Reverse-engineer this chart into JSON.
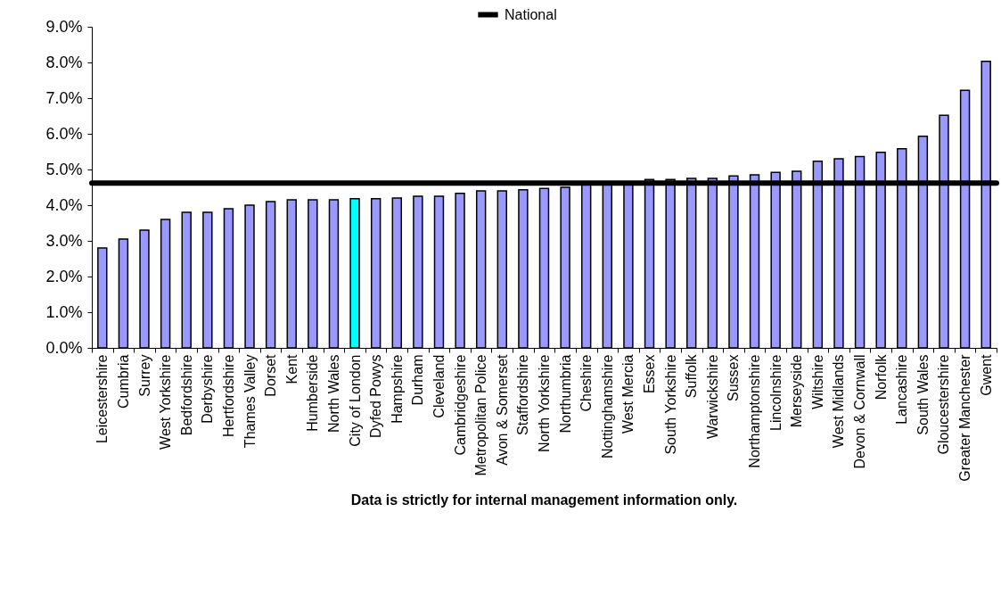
{
  "chart_data": {
    "type": "bar",
    "categories": [
      "Leicestershire",
      "Cumbria",
      "Surrey",
      "West Yorkshire",
      "Bedfordshire",
      "Derbyshire",
      "Hertfordshire",
      "Thames Valley",
      "Dorset",
      "Kent",
      "Humberside",
      "North Wales",
      "City of London",
      "Dyfed Powys",
      "Hampshire",
      "Durham",
      "Cleveland",
      "Cambridgeshire",
      "Metropolitan Police",
      "Avon & Somerset",
      "Staffordshire",
      "North Yorkshire",
      "Northumbria",
      "Cheshire",
      "Nottinghamshire",
      "West Mercia",
      "Essex",
      "South Yorkshire",
      "Suffolk",
      "Warwickshire",
      "Sussex",
      "Northamptonshire",
      "Lincolnshire",
      "Merseyside",
      "Wiltshire",
      "West Midlands",
      "Devon & Cornwall",
      "Norfolk",
      "Lancashire",
      "South Wales",
      "Gloucestershire",
      "Greater Manchester",
      "Gwent"
    ],
    "values": [
      2.8,
      3.05,
      3.3,
      3.6,
      3.8,
      3.8,
      3.9,
      4.0,
      4.1,
      4.15,
      4.15,
      4.15,
      4.18,
      4.18,
      4.2,
      4.25,
      4.25,
      4.33,
      4.4,
      4.4,
      4.43,
      4.47,
      4.5,
      4.6,
      4.63,
      4.65,
      4.72,
      4.72,
      4.75,
      4.75,
      4.82,
      4.85,
      4.92,
      4.95,
      5.23,
      5.3,
      5.36,
      5.48,
      5.58,
      5.93,
      6.52,
      7.22,
      8.03
    ],
    "colors": [
      "#9999ff",
      "#9999ff",
      "#9999ff",
      "#9999ff",
      "#9999ff",
      "#9999ff",
      "#9999ff",
      "#9999ff",
      "#9999ff",
      "#9999ff",
      "#9999ff",
      "#9999ff",
      "#00ffff",
      "#9999ff",
      "#9999ff",
      "#9999ff",
      "#9999ff",
      "#9999ff",
      "#9999ff",
      "#9999ff",
      "#9999ff",
      "#9999ff",
      "#9999ff",
      "#9999ff",
      "#9999ff",
      "#9999ff",
      "#9999ff",
      "#9999ff",
      "#9999ff",
      "#9999ff",
      "#9999ff",
      "#9999ff",
      "#9999ff",
      "#9999ff",
      "#9999ff",
      "#9999ff",
      "#9999ff",
      "#9999ff",
      "#9999ff",
      "#9999ff",
      "#9999ff",
      "#9999ff",
      "#9999ff"
    ],
    "ylim": [
      0,
      9
    ],
    "yticks": [
      {
        "value": 0,
        "label": "0.0%"
      },
      {
        "value": 1,
        "label": "1.0%"
      },
      {
        "value": 2,
        "label": "2.0%"
      },
      {
        "value": 3,
        "label": "3.0%"
      },
      {
        "value": 4,
        "label": "4.0%"
      },
      {
        "value": 5,
        "label": "5.0%"
      },
      {
        "value": 6,
        "label": "6.0%"
      },
      {
        "value": 7,
        "label": "7.0%"
      },
      {
        "value": 8,
        "label": "8.0%"
      },
      {
        "value": 9,
        "label": "9.0%"
      }
    ],
    "ref_lines": [
      {
        "axis": "y",
        "value": 4.62,
        "label": "National",
        "color": "#000000"
      }
    ],
    "legend": "top",
    "annotations": [
      "Data is strictly for internal management information only."
    ]
  }
}
